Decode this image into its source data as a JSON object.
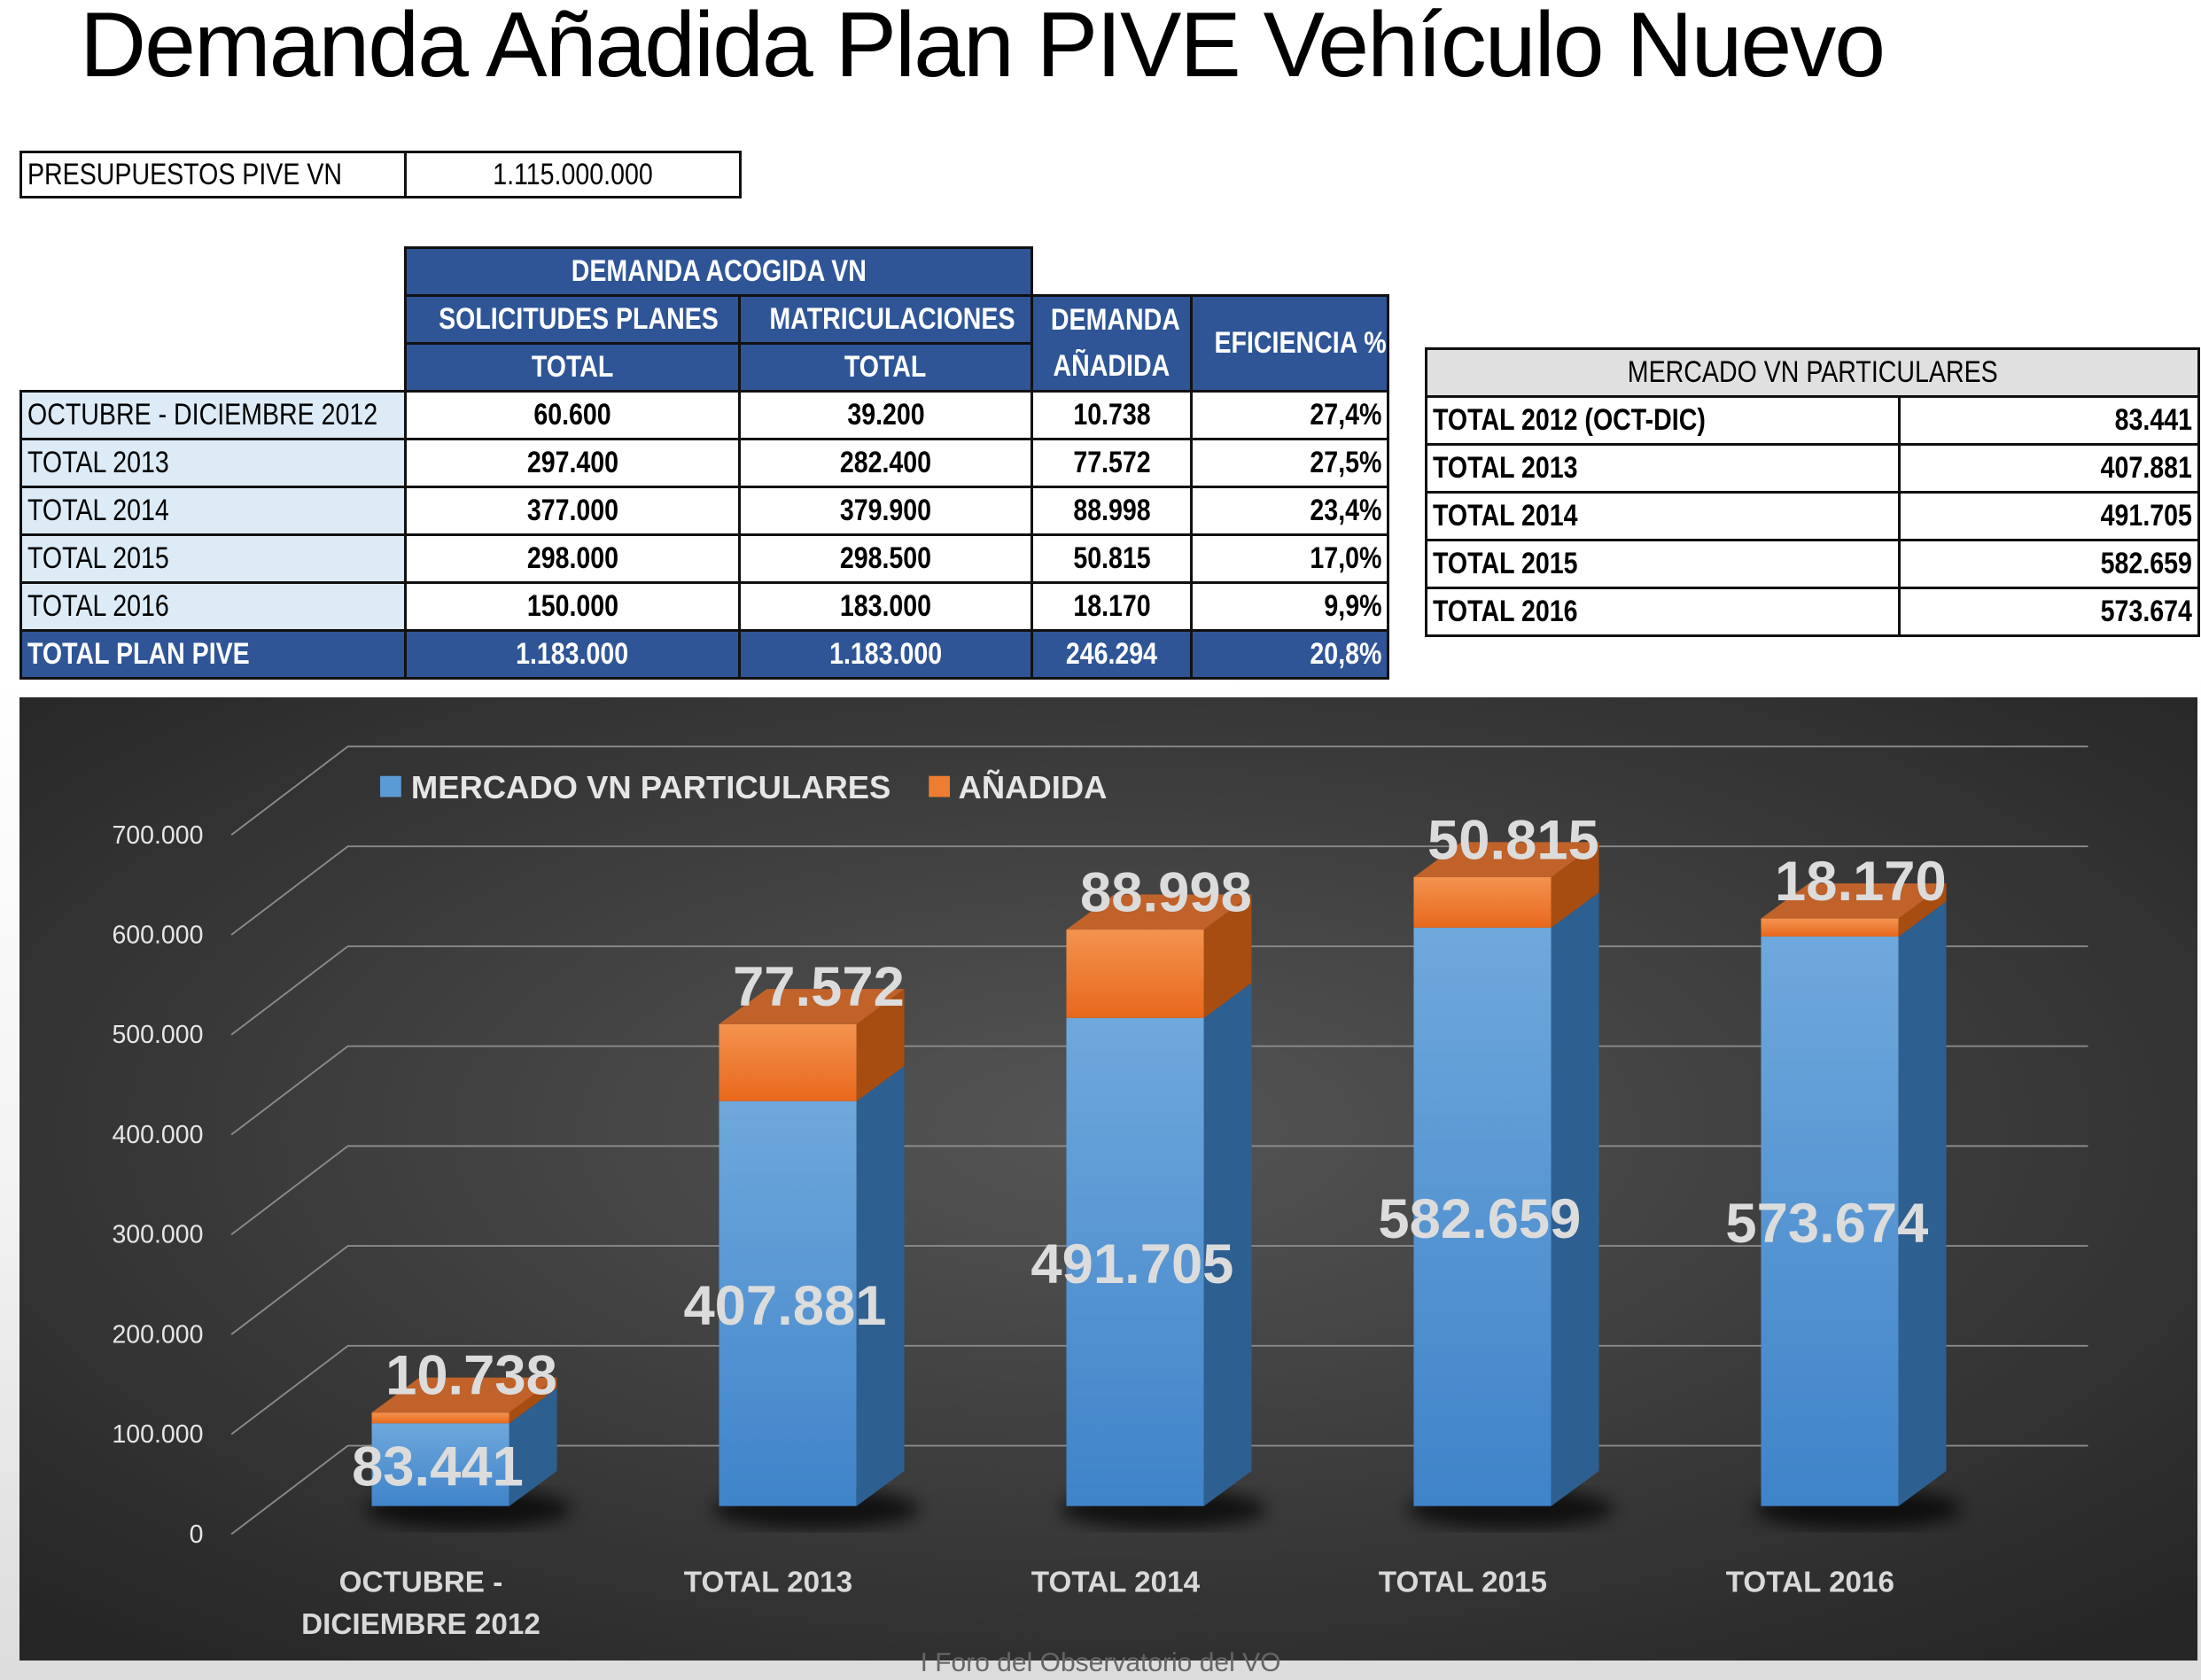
{
  "title": "Demanda Añadida Plan PIVE Vehículo Nuevo",
  "budget": {
    "label": "PRESUPUESTOS PIVE VN",
    "value": "1.115.000.000"
  },
  "main_table": {
    "group_header": "DEMANDA ACOGIDA VN",
    "headers": {
      "solicitudes": "SOLICITUDES PLANES",
      "solicitudes_sub": "TOTAL",
      "matriculaciones": "MATRICULACIONES",
      "matriculaciones_sub": "TOTAL",
      "demanda": "DEMANDA",
      "demanda_sub": "AÑADIDA",
      "eficiencia": "EFICIENCIA %"
    },
    "rows": [
      [
        "OCTUBRE - DICIEMBRE 2012",
        "60.600",
        "39.200",
        "10.738",
        "27,4%"
      ],
      [
        "TOTAL 2013",
        "297.400",
        "282.400",
        "77.572",
        "27,5%"
      ],
      [
        "TOTAL 2014",
        "377.000",
        "379.900",
        "88.998",
        "23,4%"
      ],
      [
        "TOTAL 2015",
        "298.000",
        "298.500",
        "50.815",
        "17,0%"
      ],
      [
        "TOTAL 2016",
        "150.000",
        "183.000",
        "18.170",
        "9,9%"
      ]
    ],
    "total": [
      "TOTAL PLAN PIVE",
      "1.183.000",
      "1.183.000",
      "246.294",
      "20,8%"
    ]
  },
  "market_table": {
    "header": "MERCADO VN PARTICULARES",
    "rows": [
      [
        "TOTAL 2012 (OCT-DIC)",
        "83.441"
      ],
      [
        "TOTAL 2013",
        "407.881"
      ],
      [
        "TOTAL 2014",
        "491.705"
      ],
      [
        "TOTAL 2015",
        "582.659"
      ],
      [
        "TOTAL 2016",
        "573.674"
      ]
    ]
  },
  "chart_data": {
    "type": "bar",
    "stacked": true,
    "style": "3d",
    "categories": [
      "OCTUBRE - DICIEMBRE 2012",
      "TOTAL 2013",
      "TOTAL 2014",
      "TOTAL 2015",
      "TOTAL 2016"
    ],
    "series": [
      {
        "name": "MERCADO VN PARTICULARES",
        "values": [
          83441,
          407881,
          491705,
          582659,
          573674
        ],
        "labels": [
          "83.441",
          "407.881",
          "491.705",
          "582.659",
          "573.674"
        ],
        "color": "#5b9bd5"
      },
      {
        "name": "AÑADIDA",
        "values": [
          10738,
          77572,
          88998,
          50815,
          18170
        ],
        "labels": [
          "10.738",
          "77.572",
          "88.998",
          "50.815",
          "18.170"
        ],
        "color": "#ed7d31"
      }
    ],
    "ylim": [
      0,
      700000
    ],
    "yticks": [
      "0",
      "100.000",
      "200.000",
      "300.000",
      "400.000",
      "500.000",
      "600.000",
      "700.000"
    ],
    "grid": true,
    "legend": "top-left",
    "background": "#3a3a3a"
  },
  "footer": "I Foro del Observatorio del VO"
}
